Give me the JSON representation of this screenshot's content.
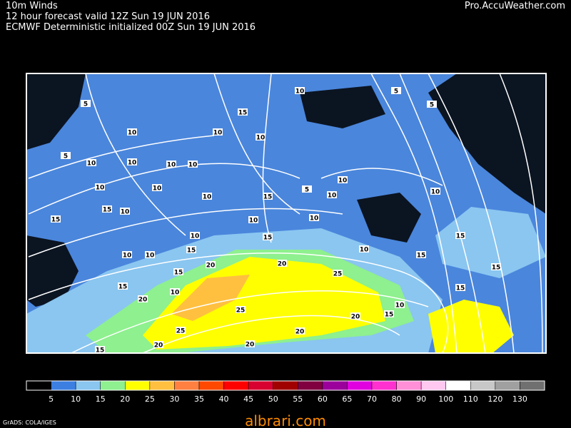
{
  "header": {
    "title": "10m Winds",
    "line2": "12 hour forecast valid 12Z Sun 19 JUN 2016",
    "line3": "ECMWF Deterministic initialized 00Z Sun 19 JUN 2016",
    "site": "Pro.AccuWeather.com"
  },
  "map": {
    "labels": [
      5,
      10,
      5,
      10,
      10,
      10,
      15,
      10,
      10,
      10,
      5,
      5,
      10,
      10,
      10,
      15,
      10,
      10,
      5,
      10,
      10,
      15,
      10,
      10,
      15,
      15,
      10,
      10,
      15,
      10,
      10,
      10,
      10,
      15,
      20,
      15,
      20,
      25,
      25,
      20,
      20,
      20,
      25,
      20,
      15,
      15,
      20,
      15,
      10,
      15,
      15,
      15
    ],
    "background": "#000000",
    "base_color": "#4a86dc"
  },
  "legend": {
    "colors": [
      "#000000",
      "#3c7fe0",
      "#8ac6f0",
      "#8ef08e",
      "#ffff00",
      "#ffc040",
      "#ff8040",
      "#ff4800",
      "#ff0000",
      "#d80030",
      "#a00000",
      "#800040",
      "#9c009c",
      "#e000e0",
      "#ff30d0",
      "#ff90d8",
      "#ffc8f0",
      "#ffffff",
      "#c8c8c8",
      "#a0a0a0",
      "#707070"
    ],
    "labels": [
      5,
      10,
      15,
      20,
      25,
      30,
      35,
      40,
      45,
      50,
      55,
      60,
      65,
      70,
      80,
      90,
      100,
      110,
      120,
      130
    ]
  },
  "footer": {
    "credit": "GrADS: COLA/IGES",
    "watermark": "albrari.com"
  }
}
